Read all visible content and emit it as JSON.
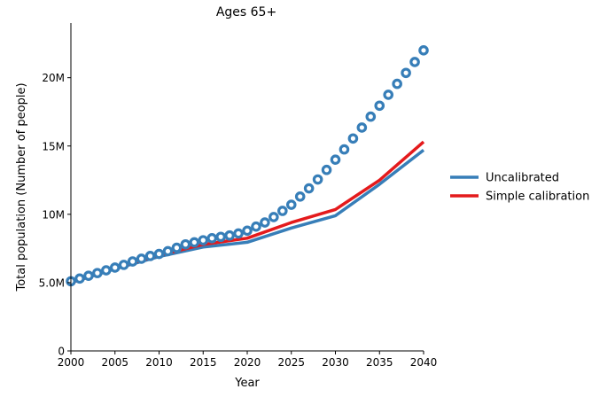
{
  "chart_data": {
    "type": "line",
    "title": "Ages 65+",
    "xlabel": "Year",
    "ylabel": "Total population (Number of people)",
    "xlim": [
      2000,
      2040
    ],
    "ylim": [
      0,
      24000000
    ],
    "xticks": [
      2000,
      2005,
      2010,
      2015,
      2020,
      2025,
      2030,
      2035,
      2040
    ],
    "xtick_labels": [
      "2000",
      "2005",
      "2010",
      "2015",
      "2020",
      "2025",
      "2030",
      "2035",
      "2040"
    ],
    "yticks": [
      0,
      5000000,
      10000000,
      15000000,
      20000000
    ],
    "ytick_labels": [
      "0",
      "5.0M",
      "10M",
      "15M",
      "20M"
    ],
    "grid": false,
    "legend_position": "right",
    "series": [
      {
        "name": "Uncalibrated",
        "style": "line",
        "color": "#377eb8",
        "x": [
          2000,
          2005,
          2010,
          2015,
          2020,
          2025,
          2030,
          2035,
          2040
        ],
        "y": [
          5000000,
          6000000,
          6900000,
          7600000,
          7950000,
          9000000,
          9900000,
          12200000,
          14700000
        ]
      },
      {
        "name": "Simple calibration",
        "style": "line",
        "color": "#e41a1c",
        "x": [
          2000,
          2005,
          2010,
          2015,
          2020,
          2025,
          2030,
          2035,
          2040
        ],
        "y": [
          5000000,
          6050000,
          7000000,
          7800000,
          8250000,
          9400000,
          10350000,
          12500000,
          15300000
        ]
      },
      {
        "style": "markers",
        "color": "#377eb8",
        "x": [
          2000,
          2001,
          2002,
          2003,
          2004,
          2005,
          2006,
          2007,
          2008,
          2009,
          2010,
          2011,
          2012,
          2013,
          2014,
          2015,
          2016,
          2017,
          2018,
          2019,
          2020,
          2021,
          2022,
          2023,
          2024,
          2025,
          2026,
          2027,
          2028,
          2029,
          2030,
          2031,
          2032,
          2033,
          2034,
          2035,
          2036,
          2037,
          2038,
          2039,
          2040
        ],
        "y": [
          5100000,
          5300000,
          5500000,
          5700000,
          5900000,
          6100000,
          6300000,
          6550000,
          6750000,
          6950000,
          7100000,
          7300000,
          7550000,
          7800000,
          7950000,
          8100000,
          8250000,
          8350000,
          8450000,
          8600000,
          8800000,
          9100000,
          9400000,
          9800000,
          10250000,
          10700000,
          11300000,
          11900000,
          12550000,
          13250000,
          14000000,
          14750000,
          15550000,
          16350000,
          17150000,
          17950000,
          18750000,
          19550000,
          20350000,
          21150000,
          22000000
        ]
      }
    ]
  }
}
